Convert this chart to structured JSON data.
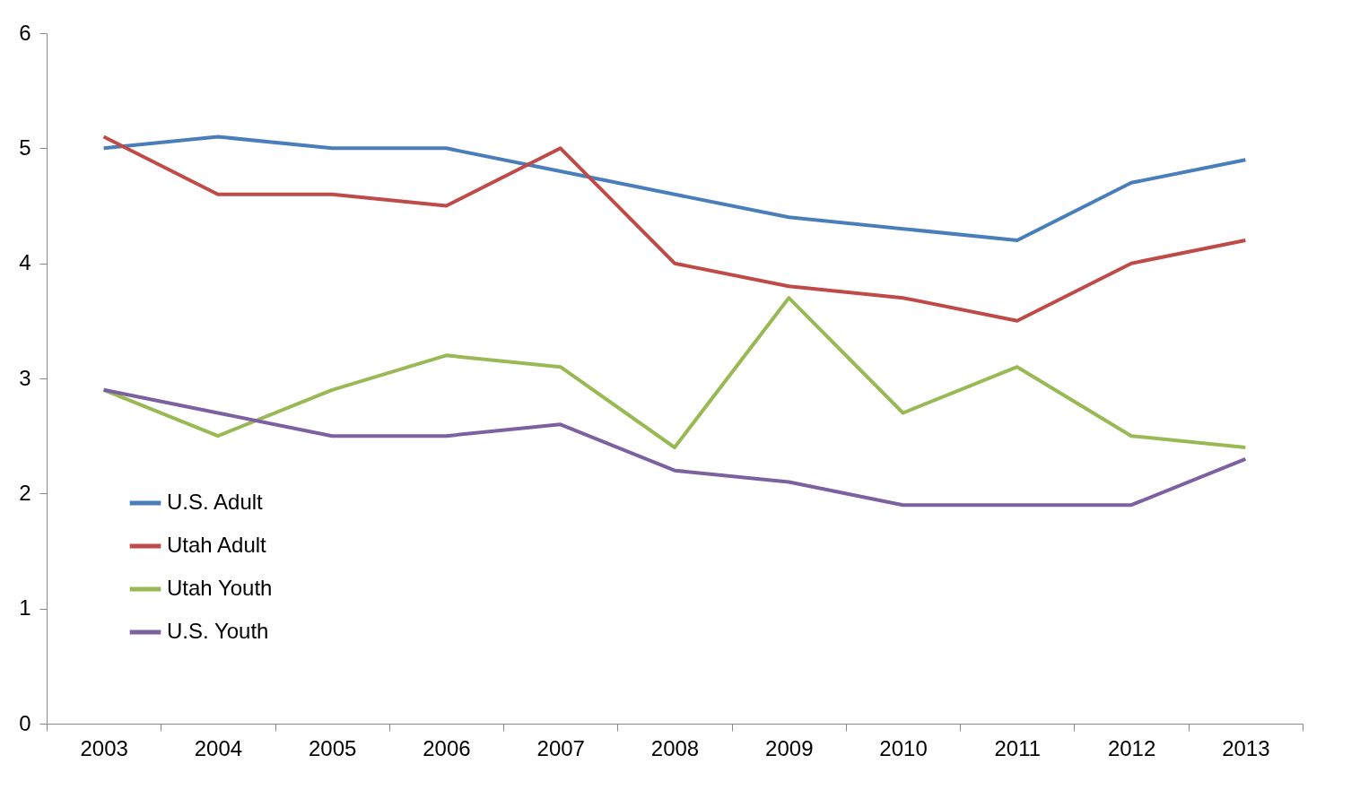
{
  "chart_data": {
    "type": "line",
    "categories": [
      "2003",
      "2004",
      "2005",
      "2006",
      "2007",
      "2008",
      "2009",
      "2010",
      "2011",
      "2012",
      "2013"
    ],
    "series": [
      {
        "name": "U.S. Adult",
        "color": "#4a7ebb",
        "values": [
          5.0,
          5.1,
          5.0,
          5.0,
          4.8,
          4.6,
          4.4,
          4.3,
          4.2,
          4.7,
          4.9
        ]
      },
      {
        "name": "Utah Adult",
        "color": "#be4b48",
        "values": [
          5.1,
          4.6,
          4.6,
          4.5,
          5.0,
          4.0,
          3.8,
          3.7,
          3.5,
          4.0,
          4.2
        ]
      },
      {
        "name": "Utah Youth",
        "color": "#98b954",
        "values": [
          2.9,
          2.5,
          2.9,
          3.2,
          3.1,
          2.4,
          3.7,
          2.7,
          3.1,
          2.5,
          2.4
        ]
      },
      {
        "name": "U.S. Youth",
        "color": "#7d60a0",
        "values": [
          2.9,
          2.7,
          2.5,
          2.5,
          2.6,
          2.2,
          2.1,
          1.9,
          1.9,
          1.9,
          2.3
        ]
      }
    ],
    "ylim": [
      0,
      6
    ],
    "yticks": [
      0,
      1,
      2,
      3,
      4,
      5,
      6
    ],
    "grid": false,
    "legend": "bottom left",
    "marker": "none",
    "line_style": "solid"
  }
}
